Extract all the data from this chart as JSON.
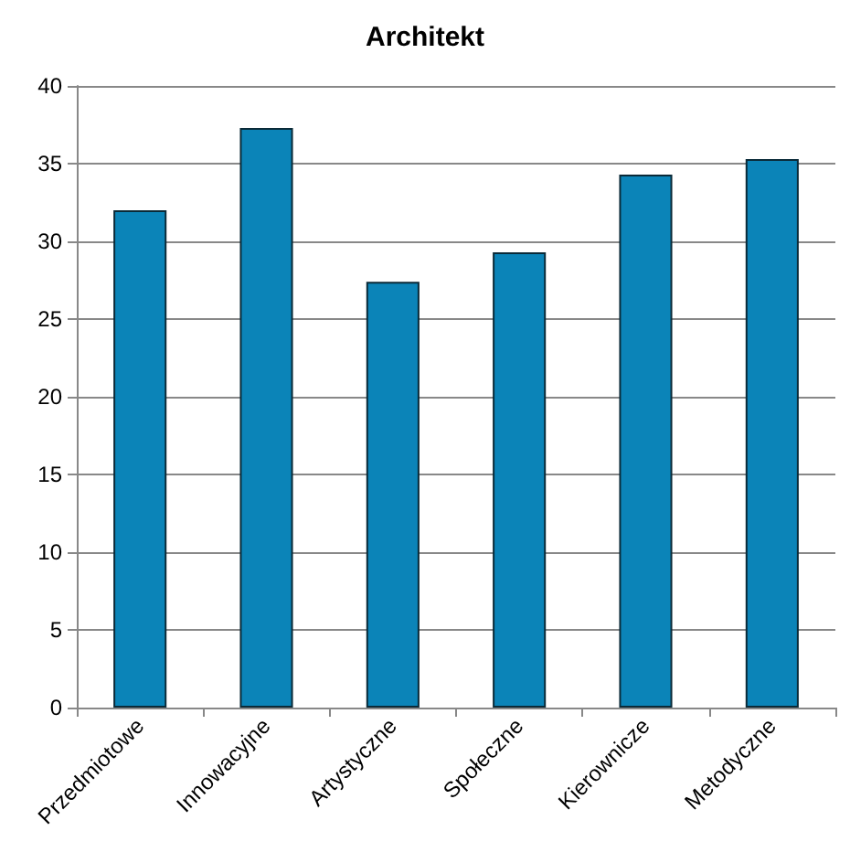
{
  "chart_data": {
    "type": "bar",
    "title": "Architekt",
    "categories": [
      "Przedmiotowe",
      "Innowacyjne",
      "Artystyczne",
      "Społeczne",
      "Kierownicze",
      "Metodyczne"
    ],
    "values": [
      32.0,
      37.3,
      27.4,
      29.3,
      34.3,
      35.3
    ],
    "color": "#0b84b8",
    "ylim": [
      0,
      40
    ],
    "yticks": [
      0,
      5,
      10,
      15,
      20,
      25,
      30,
      35,
      40
    ],
    "grid": "y"
  }
}
